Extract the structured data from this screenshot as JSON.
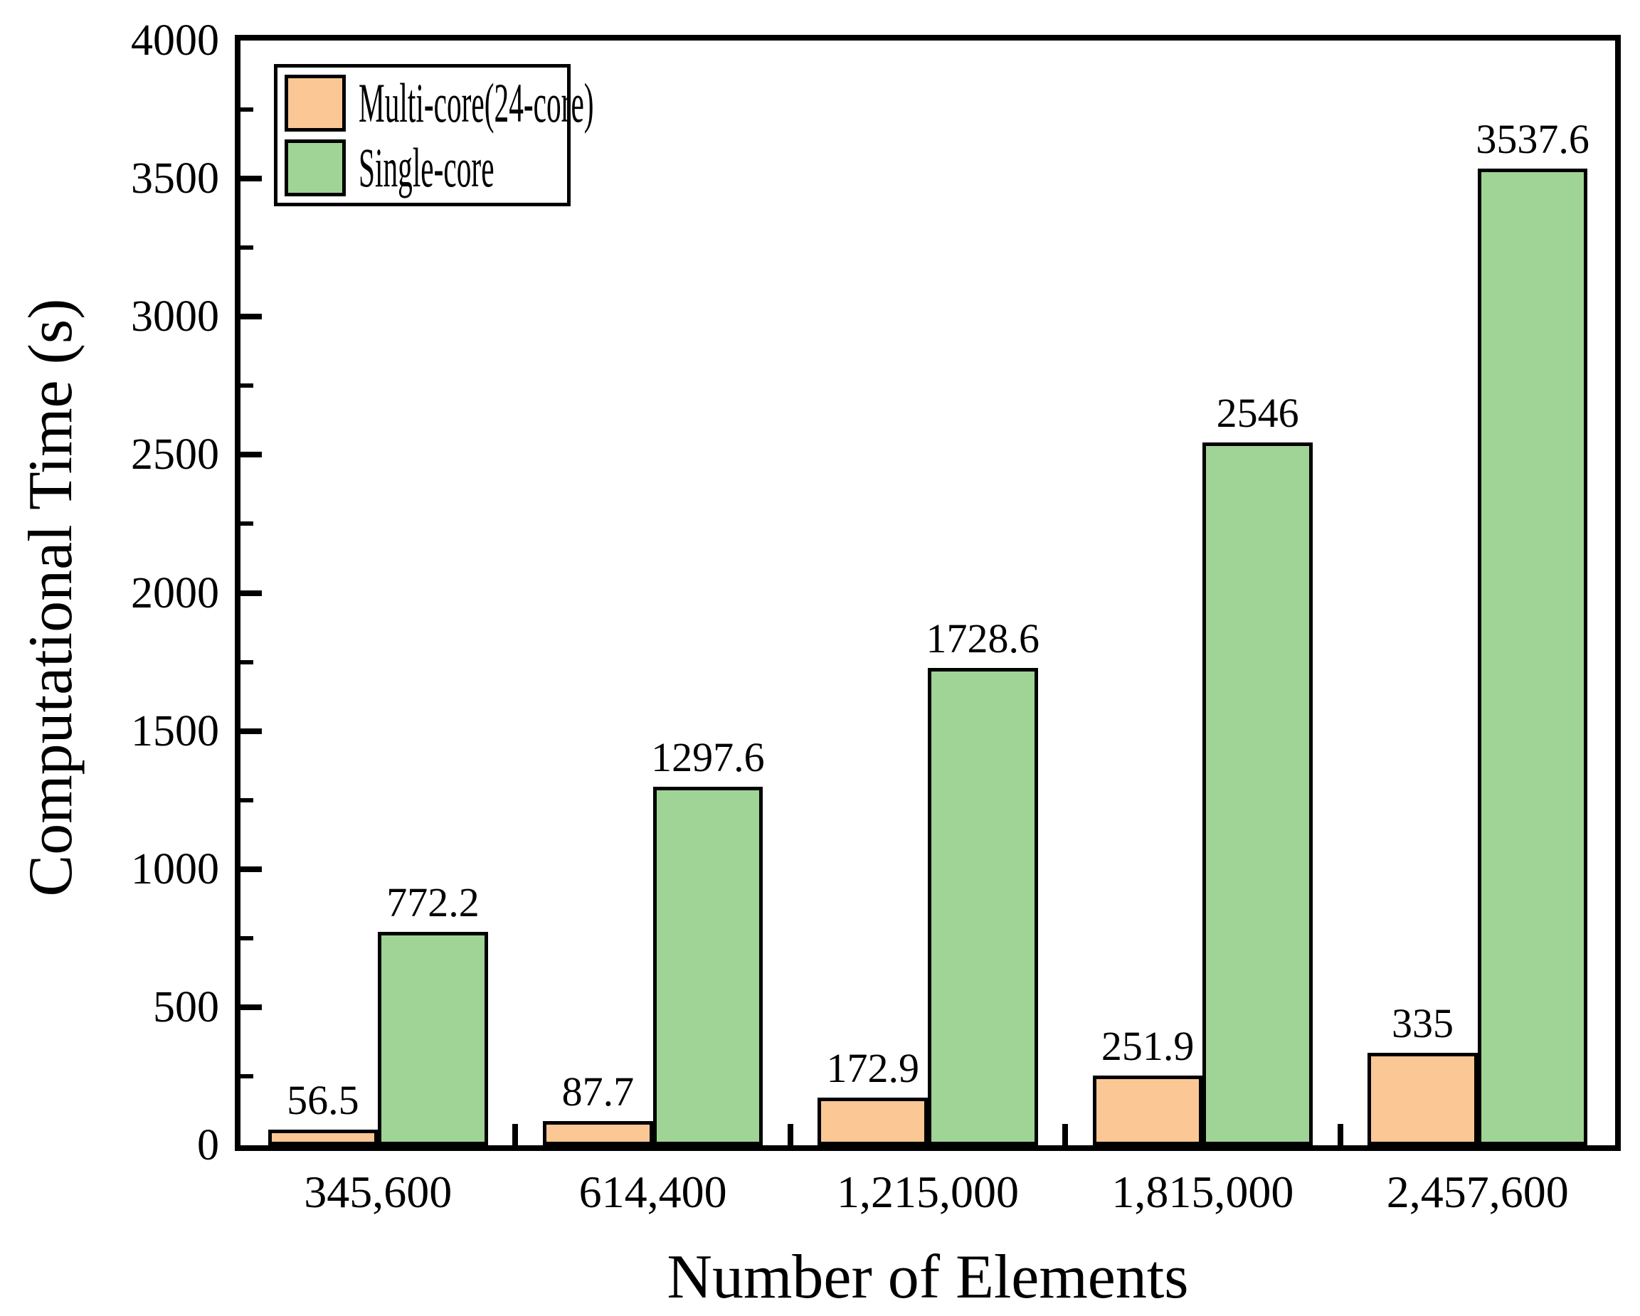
{
  "chart_data": {
    "type": "bar",
    "title": "",
    "xlabel": "Number of Elements",
    "ylabel": "Computational Time (s)",
    "categories": [
      "345,600",
      "614,400",
      "1,215,000",
      "1,815,000",
      "2,457,600"
    ],
    "series": [
      {
        "name": "Multi-core(24-core)",
        "color": "#FAC795",
        "values": [
          56.5,
          87.7,
          172.9,
          251.9,
          335
        ],
        "labels": [
          "56.5",
          "87.7",
          "172.9",
          "251.9",
          "335"
        ]
      },
      {
        "name": "Single-core",
        "color": "#A0D396",
        "values": [
          772.2,
          1297.6,
          1728.6,
          2546,
          3537.6
        ],
        "labels": [
          "772.2",
          "1297.6",
          "1728.6",
          "2546",
          "3537.6"
        ]
      }
    ],
    "ylim": [
      0,
      4000
    ],
    "ytick_step": 500,
    "yticks": [
      "0",
      "500",
      "1000",
      "1500",
      "2000",
      "2500",
      "3000",
      "3500",
      "4000"
    ],
    "minor_tick_step": 250,
    "bar_edge_color": "#000000",
    "legend_position": "top-left",
    "grid": false
  }
}
